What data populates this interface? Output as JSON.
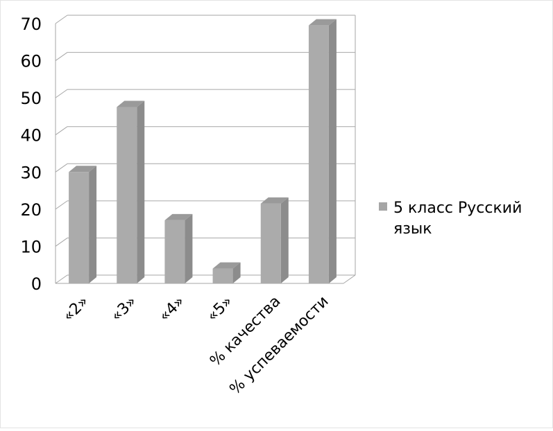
{
  "chart_data": {
    "type": "bar",
    "categories": [
      "«2»",
      "«3»",
      "«4»",
      "«5»",
      "% качества",
      "% успеваемости"
    ],
    "series": [
      {
        "name": "5 класс Русский язык",
        "values": [
          30,
          47.5,
          17,
          4,
          21.5,
          69.5
        ]
      }
    ],
    "ylim": [
      0,
      70
    ],
    "yticks": [
      0,
      10,
      20,
      30,
      40,
      50,
      60,
      70
    ],
    "grid": true,
    "legend_position": "right",
    "colors": {
      "bar_front": "#ababab",
      "bar_side": "#8c8c8c",
      "bar_top": "#9a9a9a",
      "grid": "#a6a6a6",
      "axis": "#a6a6a6",
      "legend_swatch": "#a6a6a6"
    }
  }
}
